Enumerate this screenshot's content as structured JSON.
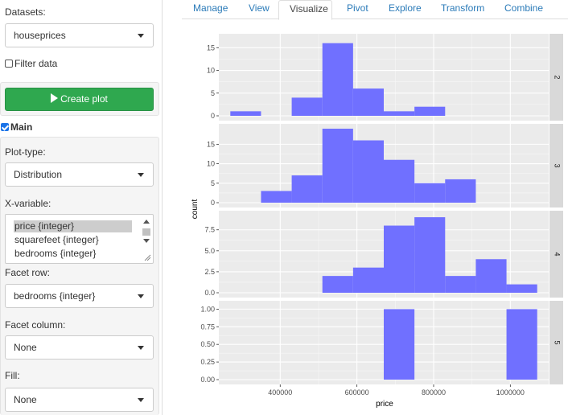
{
  "sidebar": {
    "datasets_label": "Datasets:",
    "dataset_value": "houseprices",
    "filter_label": "Filter data",
    "create_plot_label": "Create plot",
    "main_label": "Main",
    "plot_type_label": "Plot-type:",
    "plot_type_value": "Distribution",
    "x_variable_label": "X-variable:",
    "x_variable_options": [
      "price {integer}",
      "squarefeet {integer}",
      "bedrooms {integer}"
    ],
    "x_variable_selected": "price {integer}",
    "facet_row_label": "Facet row:",
    "facet_row_value": "bedrooms {integer}",
    "facet_column_label": "Facet column:",
    "facet_column_value": "None",
    "fill_label": "Fill:",
    "fill_value": "None",
    "filter_checked": false,
    "main_checked": true
  },
  "tabs": [
    "Manage",
    "View",
    "Visualize",
    "Pivot",
    "Explore",
    "Transform",
    "Combine"
  ],
  "active_tab": "Visualize",
  "colors": {
    "bar_fill": "#7070ff",
    "panel_bg": "#ebebeb",
    "strip_bg": "#d9d9d9",
    "button_green": "#2fa84f",
    "tab_link": "#2a7ab8"
  },
  "chart_data": {
    "type": "histogram",
    "xlabel": "price",
    "ylabel": "count",
    "x_ticks": [
      400000,
      600000,
      800000,
      1000000
    ],
    "x_tick_labels": [
      "400000",
      "600000",
      "800000",
      "1000000"
    ],
    "xlim": [
      240000,
      1100000
    ],
    "bin_width": 80000,
    "grid": true,
    "facet_strip_position": "right",
    "facets": [
      {
        "label": "2",
        "ylim": [
          0,
          17
        ],
        "y_ticks": [
          0,
          5,
          10,
          15
        ],
        "y_tick_labels": [
          "0",
          "5",
          "10",
          "15"
        ],
        "bins": [
          {
            "x0": 270000,
            "x1": 350000,
            "count": 1
          },
          {
            "x0": 350000,
            "x1": 430000,
            "count": 0
          },
          {
            "x0": 430000,
            "x1": 510000,
            "count": 4
          },
          {
            "x0": 510000,
            "x1": 590000,
            "count": 16
          },
          {
            "x0": 590000,
            "x1": 670000,
            "count": 6
          },
          {
            "x0": 670000,
            "x1": 750000,
            "count": 1
          },
          {
            "x0": 750000,
            "x1": 830000,
            "count": 2
          }
        ]
      },
      {
        "label": "3",
        "ylim": [
          0,
          19
        ],
        "y_ticks": [
          0,
          5,
          10,
          15
        ],
        "y_tick_labels": [
          "0",
          "5",
          "10",
          "15"
        ],
        "bins": [
          {
            "x0": 350000,
            "x1": 430000,
            "count": 3
          },
          {
            "x0": 430000,
            "x1": 510000,
            "count": 7
          },
          {
            "x0": 510000,
            "x1": 590000,
            "count": 19
          },
          {
            "x0": 590000,
            "x1": 670000,
            "count": 16
          },
          {
            "x0": 670000,
            "x1": 750000,
            "count": 11
          },
          {
            "x0": 750000,
            "x1": 830000,
            "count": 5
          },
          {
            "x0": 830000,
            "x1": 910000,
            "count": 6
          }
        ]
      },
      {
        "label": "4",
        "ylim": [
          0,
          9.2
        ],
        "y_ticks": [
          0,
          2.5,
          5,
          7.5
        ],
        "y_tick_labels": [
          "0.0",
          "2.5",
          "5.0",
          "7.5"
        ],
        "bins": [
          {
            "x0": 510000,
            "x1": 590000,
            "count": 2
          },
          {
            "x0": 590000,
            "x1": 670000,
            "count": 3
          },
          {
            "x0": 670000,
            "x1": 750000,
            "count": 8
          },
          {
            "x0": 750000,
            "x1": 830000,
            "count": 9
          },
          {
            "x0": 830000,
            "x1": 910000,
            "count": 2
          },
          {
            "x0": 910000,
            "x1": 990000,
            "count": 4
          },
          {
            "x0": 990000,
            "x1": 1070000,
            "count": 1
          }
        ]
      },
      {
        "label": "5",
        "ylim": [
          0,
          1.05
        ],
        "y_ticks": [
          0,
          0.25,
          0.5,
          0.75,
          1.0
        ],
        "y_tick_labels": [
          "0.00",
          "0.25",
          "0.50",
          "0.75",
          "1.00"
        ],
        "bins": [
          {
            "x0": 670000,
            "x1": 750000,
            "count": 1
          },
          {
            "x0": 990000,
            "x1": 1070000,
            "count": 1
          }
        ]
      }
    ]
  }
}
